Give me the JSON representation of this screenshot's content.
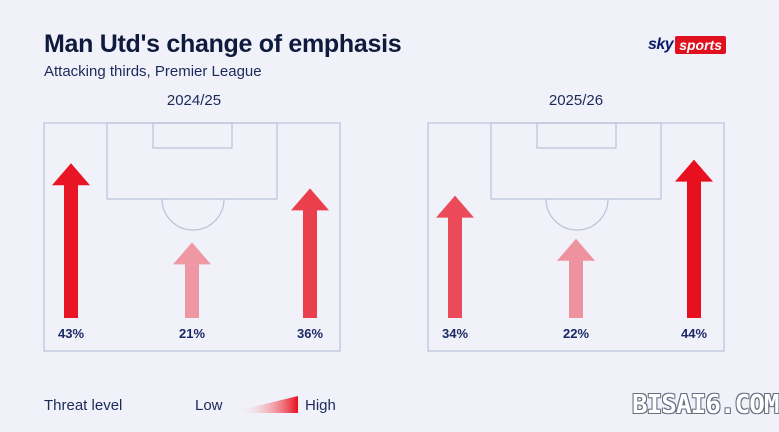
{
  "header": {
    "title": "Man Utd's change of emphasis",
    "subtitle": "Attacking thirds, Premier League"
  },
  "brand": {
    "sky": "sky",
    "sports": "sports",
    "color": "#e0101e"
  },
  "legend": {
    "label": "Threat level",
    "low": "Low",
    "high": "High"
  },
  "watermark": "BISAI6.COM",
  "chart_data": [
    {
      "type": "bar",
      "title": "2024/25",
      "categories": [
        "Left",
        "Centre",
        "Right"
      ],
      "values": [
        43,
        21,
        36
      ],
      "labels": [
        "43%",
        "21%",
        "36%"
      ],
      "unit": "%"
    },
    {
      "type": "bar",
      "title": "2025/26",
      "categories": [
        "Left",
        "Centre",
        "Right"
      ],
      "values": [
        34,
        22,
        44
      ],
      "labels": [
        "34%",
        "22%",
        "44%"
      ],
      "unit": "%"
    }
  ]
}
